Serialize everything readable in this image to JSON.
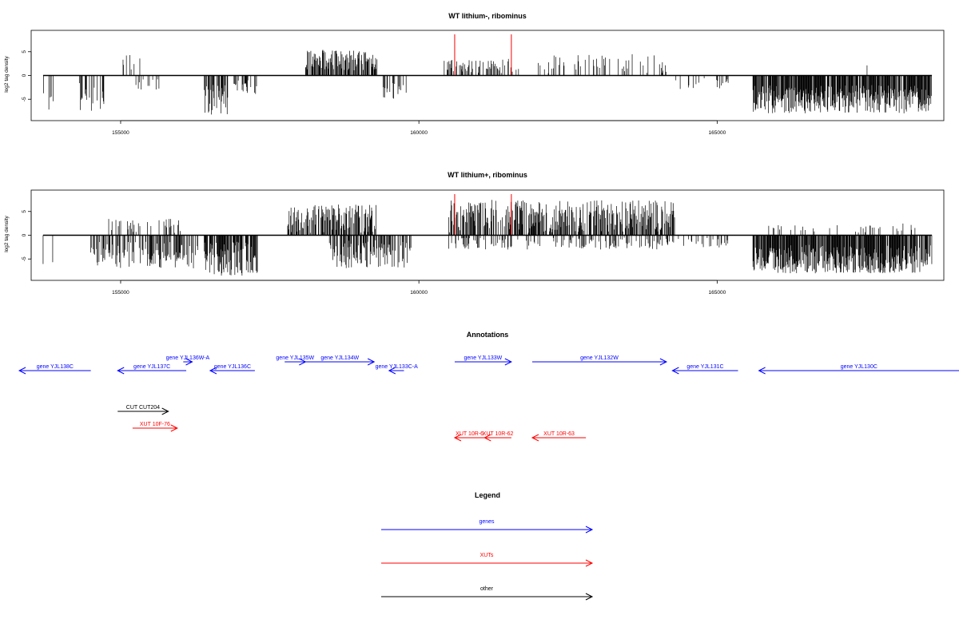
{
  "chart_data": [
    {
      "type": "bar",
      "title": "WT lithium-, ribominus",
      "ylabel": "log2 tag density",
      "xlim": [
        153500,
        168800
      ],
      "ylim": [
        -9.5,
        9.5
      ],
      "xticks": [
        155000,
        160000,
        165000
      ],
      "yticks": [
        5,
        0,
        -5
      ],
      "markers": [
        160600,
        161550
      ],
      "marker_color": "#ff0000",
      "regions": [
        {
          "start": 153700,
          "end": 153900,
          "sign": -1,
          "min": 3,
          "max": 7.5,
          "density": 0.25
        },
        {
          "start": 154300,
          "end": 154800,
          "sign": -1,
          "min": 1,
          "max": 8,
          "density": 0.35
        },
        {
          "start": 155000,
          "end": 155400,
          "sign": 1,
          "min": 0.5,
          "max": 4.5,
          "density": 0.12
        },
        {
          "start": 155200,
          "end": 155800,
          "sign": -1,
          "min": 0.5,
          "max": 3,
          "density": 0.12
        },
        {
          "start": 156400,
          "end": 156800,
          "sign": -1,
          "min": 2,
          "max": 8.5,
          "density": 0.7
        },
        {
          "start": 156900,
          "end": 157300,
          "sign": -1,
          "min": 1,
          "max": 4,
          "density": 0.3
        },
        {
          "start": 158100,
          "end": 159300,
          "sign": 1,
          "min": 1,
          "max": 5.5,
          "density": 0.6
        },
        {
          "start": 159400,
          "end": 159800,
          "sign": -1,
          "min": 1,
          "max": 5,
          "density": 0.5
        },
        {
          "start": 160400,
          "end": 161700,
          "sign": 1,
          "min": 0.5,
          "max": 3.5,
          "density": 0.35
        },
        {
          "start": 162000,
          "end": 164200,
          "sign": 1,
          "min": 0.5,
          "max": 4.5,
          "density": 0.15
        },
        {
          "start": 164300,
          "end": 165200,
          "sign": -1,
          "min": 0.5,
          "max": 3.5,
          "density": 0.12
        },
        {
          "start": 165600,
          "end": 168600,
          "sign": -1,
          "min": 2,
          "max": 8,
          "density": 0.85
        },
        {
          "start": 166500,
          "end": 168500,
          "sign": 1,
          "min": 0.5,
          "max": 3.5,
          "density": 0.01
        }
      ]
    },
    {
      "type": "bar",
      "title": "WT lithium+, ribominus",
      "ylabel": "log2 tag density",
      "xlim": [
        153500,
        168800
      ],
      "ylim": [
        -9.5,
        9.5
      ],
      "xticks": [
        155000,
        160000,
        165000
      ],
      "yticks": [
        5,
        0,
        -5
      ],
      "markers": [
        160600,
        161550
      ],
      "marker_color": "#ff0000",
      "regions": [
        {
          "start": 153700,
          "end": 153900,
          "sign": -1,
          "min": 3,
          "max": 7,
          "density": 0.25
        },
        {
          "start": 154500,
          "end": 156300,
          "sign": -1,
          "min": 1,
          "max": 7,
          "density": 0.5
        },
        {
          "start": 154800,
          "end": 156000,
          "sign": 1,
          "min": 0.5,
          "max": 3.5,
          "density": 0.25
        },
        {
          "start": 156400,
          "end": 157300,
          "sign": -1,
          "min": 1,
          "max": 8.5,
          "density": 0.7
        },
        {
          "start": 157800,
          "end": 159300,
          "sign": 1,
          "min": 0.5,
          "max": 6.5,
          "density": 0.6
        },
        {
          "start": 158500,
          "end": 159900,
          "sign": -1,
          "min": 1,
          "max": 7,
          "density": 0.5
        },
        {
          "start": 160500,
          "end": 164300,
          "sign": 1,
          "min": 0.5,
          "max": 7.5,
          "density": 0.6
        },
        {
          "start": 160500,
          "end": 165200,
          "sign": -1,
          "min": 0.5,
          "max": 3,
          "density": 0.25
        },
        {
          "start": 165600,
          "end": 168600,
          "sign": -1,
          "min": 2,
          "max": 8,
          "density": 0.85
        },
        {
          "start": 165800,
          "end": 168500,
          "sign": 1,
          "min": 0.5,
          "max": 2.5,
          "density": 0.1
        }
      ]
    }
  ],
  "annotations": {
    "title": "Annotations",
    "color_gene": "#0000ff",
    "color_xut": "#ff0000",
    "color_other": "#000000",
    "features": [
      {
        "label": "gene YJL138C",
        "start": 153300,
        "end": 154500,
        "strand": "-",
        "row": 1,
        "kind": "gene"
      },
      {
        "label": "gene YJL137C",
        "start": 154950,
        "end": 156100,
        "strand": "-",
        "row": 1,
        "kind": "gene"
      },
      {
        "label": "gene YJL136W-A",
        "start": 156050,
        "end": 156200,
        "strand": "+",
        "row": 0,
        "kind": "gene"
      },
      {
        "label": "gene YJL136C",
        "start": 156500,
        "end": 157250,
        "strand": "-",
        "row": 1,
        "kind": "gene"
      },
      {
        "label": "gene YJL135W",
        "start": 157750,
        "end": 158100,
        "strand": "+",
        "row": 0,
        "kind": "gene"
      },
      {
        "label": "gene YJL134W",
        "start": 158100,
        "end": 159250,
        "strand": "+",
        "row": 0,
        "kind": "gene"
      },
      {
        "label": "gene YJL133C-A",
        "start": 159500,
        "end": 159750,
        "strand": "-",
        "row": 1,
        "kind": "gene"
      },
      {
        "label": "gene YJL133W",
        "start": 160600,
        "end": 161550,
        "strand": "+",
        "row": 0,
        "kind": "gene"
      },
      {
        "label": "gene YJL132W",
        "start": 161900,
        "end": 164150,
        "strand": "+",
        "row": 0,
        "kind": "gene"
      },
      {
        "label": "gene YJL131C",
        "start": 164250,
        "end": 165350,
        "strand": "-",
        "row": 1,
        "kind": "gene"
      },
      {
        "label": "gene YJL130C",
        "start": 165700,
        "end": 171000,
        "strand": "-",
        "row": 1,
        "kind": "gene"
      },
      {
        "label": "CUT CUT204",
        "start": 154950,
        "end": 155800,
        "strand": "+",
        "row": 2,
        "kind": "other"
      },
      {
        "label": "XUT 10F-76",
        "start": 155200,
        "end": 155950,
        "strand": "+",
        "row": 3,
        "kind": "xut"
      },
      {
        "label": "XUT 10R-6",
        "start": 160600,
        "end": 161100,
        "strand": "-",
        "row": 4,
        "kind": "xut"
      },
      {
        "label": "XUT 10R-62",
        "start": 161100,
        "end": 161550,
        "strand": "-",
        "row": 4,
        "kind": "xut"
      },
      {
        "label": "XUT 10R-63",
        "start": 161900,
        "end": 162800,
        "strand": "-",
        "row": 4,
        "kind": "xut"
      }
    ]
  },
  "legend": {
    "title": "Legend",
    "items": [
      {
        "label": "genes",
        "color": "#0000ff"
      },
      {
        "label": "XUTs",
        "color": "#ff0000"
      },
      {
        "label": "other",
        "color": "#000000"
      }
    ]
  }
}
